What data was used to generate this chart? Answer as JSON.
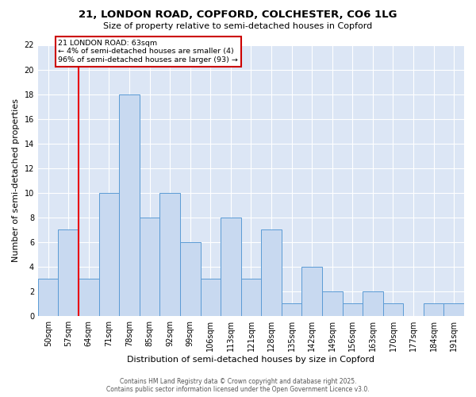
{
  "title1": "21, LONDON ROAD, COPFORD, COLCHESTER, CO6 1LG",
  "title2": "Size of property relative to semi-detached houses in Copford",
  "xlabel": "Distribution of semi-detached houses by size in Copford",
  "ylabel": "Number of semi-detached properties",
  "bins": [
    "50sqm",
    "57sqm",
    "64sqm",
    "71sqm",
    "78sqm",
    "85sqm",
    "92sqm",
    "99sqm",
    "106sqm",
    "113sqm",
    "121sqm",
    "128sqm",
    "135sqm",
    "142sqm",
    "149sqm",
    "156sqm",
    "163sqm",
    "170sqm",
    "177sqm",
    "184sqm",
    "191sqm"
  ],
  "counts": [
    3,
    7,
    3,
    10,
    18,
    8,
    10,
    6,
    3,
    8,
    3,
    7,
    1,
    4,
    2,
    1,
    2,
    1,
    0,
    1,
    1
  ],
  "bar_color": "#c8d9f0",
  "bar_edge_color": "#5b9bd5",
  "bar_width": 1.0,
  "vline_x": 2,
  "vline_color": "#e8000d",
  "ylim": [
    0,
    22
  ],
  "yticks": [
    0,
    2,
    4,
    6,
    8,
    10,
    12,
    14,
    16,
    18,
    20,
    22
  ],
  "annotation_title": "21 LONDON ROAD: 63sqm",
  "annotation_line1": "← 4% of semi-detached houses are smaller (4)",
  "annotation_line2": "96% of semi-detached houses are larger (93) →",
  "annotation_box_color": "#ffffff",
  "annotation_box_edge": "#cc0000",
  "plot_bg_color": "#dce6f5",
  "fig_bg_color": "#ffffff",
  "footer1": "Contains HM Land Registry data © Crown copyright and database right 2025.",
  "footer2": "Contains public sector information licensed under the Open Government Licence v3.0.",
  "title1_fontsize": 9.5,
  "title2_fontsize": 8.0,
  "xlabel_fontsize": 8.0,
  "ylabel_fontsize": 8.0,
  "tick_fontsize": 7.0,
  "footer_fontsize": 5.5
}
